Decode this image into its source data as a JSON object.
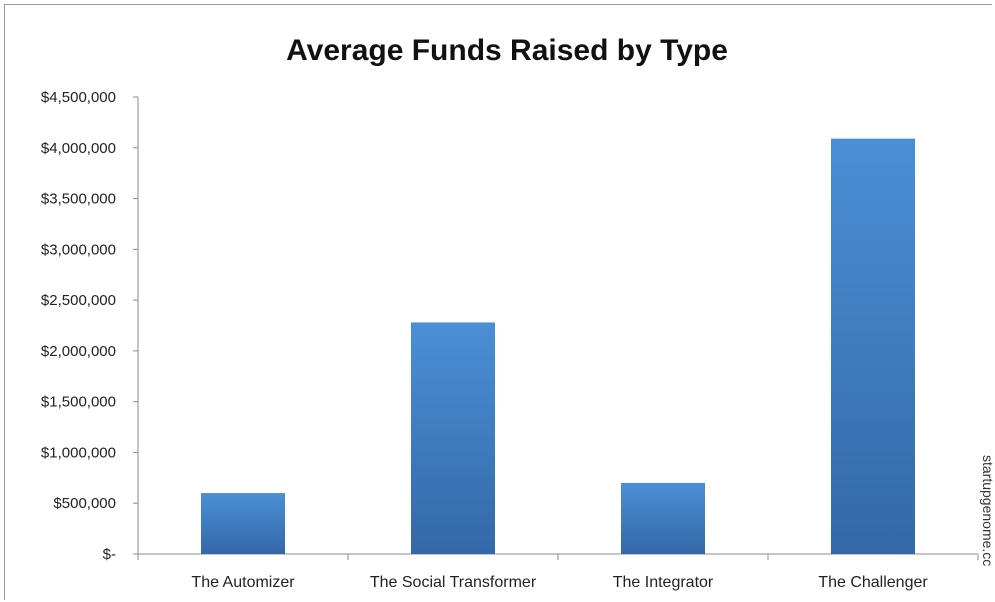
{
  "chart_data": {
    "type": "bar",
    "title": "Average Funds Raised by Type",
    "xlabel": "",
    "ylabel": "",
    "categories": [
      "The Automizer",
      "The Social Transformer",
      "The Integrator",
      "The Challenger"
    ],
    "values": [
      600000,
      2280000,
      700000,
      4090000
    ],
    "ylim": [
      0,
      4500000
    ],
    "yticks": [
      0,
      500000,
      1000000,
      1500000,
      2000000,
      2500000,
      3000000,
      3500000,
      4000000,
      4500000
    ],
    "ytick_labels": [
      "$-",
      "$500,000",
      "$1,000,000",
      "$1,500,000",
      "$2,000,000",
      "$2,500,000",
      "$3,000,000",
      "$3,500,000",
      "$4,000,000",
      "$4,500,000"
    ],
    "grid": false,
    "legend": "none",
    "bar_color": "#4a8fd6",
    "bar_color_dark": "#3468a8"
  },
  "source_text": "startupgenome.cc"
}
